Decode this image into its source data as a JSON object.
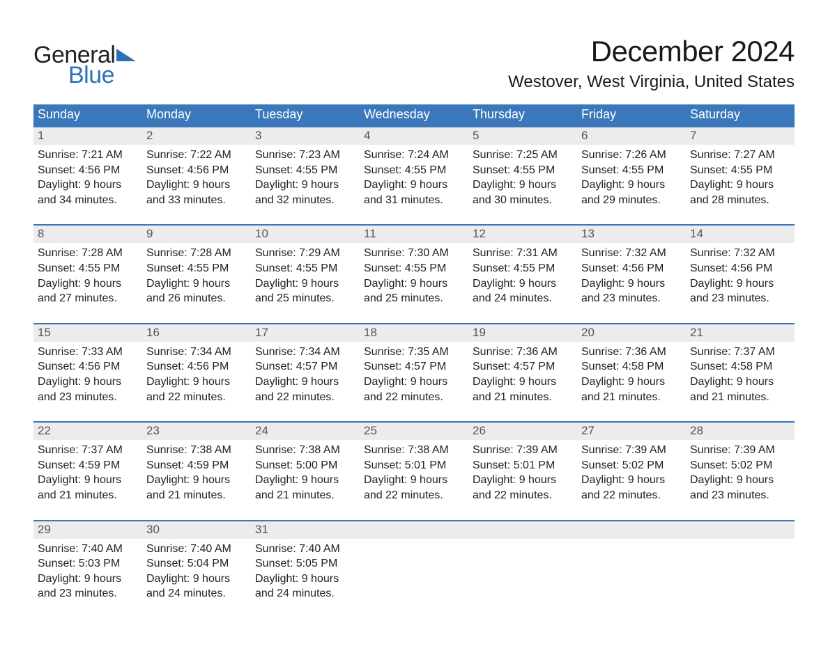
{
  "brand": {
    "part1": "General",
    "part2": "Blue"
  },
  "title": "December 2024",
  "location": "Westover, West Virginia, United States",
  "colors": {
    "header_bg": "#3b78bb",
    "daynum_bg": "#ececec",
    "brand_blue": "#2f71b8",
    "brand_dark": "#222222",
    "text": "#222222"
  },
  "days_of_week": [
    "Sunday",
    "Monday",
    "Tuesday",
    "Wednesday",
    "Thursday",
    "Friday",
    "Saturday"
  ],
  "labels": {
    "sunrise": "Sunrise:",
    "sunset": "Sunset:",
    "daylight": "Daylight:"
  },
  "weeks": [
    [
      {
        "n": "1",
        "sr": "7:21 AM",
        "ss": "4:56 PM",
        "dl1": "9 hours",
        "dl2": "and 34 minutes."
      },
      {
        "n": "2",
        "sr": "7:22 AM",
        "ss": "4:56 PM",
        "dl1": "9 hours",
        "dl2": "and 33 minutes."
      },
      {
        "n": "3",
        "sr": "7:23 AM",
        "ss": "4:55 PM",
        "dl1": "9 hours",
        "dl2": "and 32 minutes."
      },
      {
        "n": "4",
        "sr": "7:24 AM",
        "ss": "4:55 PM",
        "dl1": "9 hours",
        "dl2": "and 31 minutes."
      },
      {
        "n": "5",
        "sr": "7:25 AM",
        "ss": "4:55 PM",
        "dl1": "9 hours",
        "dl2": "and 30 minutes."
      },
      {
        "n": "6",
        "sr": "7:26 AM",
        "ss": "4:55 PM",
        "dl1": "9 hours",
        "dl2": "and 29 minutes."
      },
      {
        "n": "7",
        "sr": "7:27 AM",
        "ss": "4:55 PM",
        "dl1": "9 hours",
        "dl2": "and 28 minutes."
      }
    ],
    [
      {
        "n": "8",
        "sr": "7:28 AM",
        "ss": "4:55 PM",
        "dl1": "9 hours",
        "dl2": "and 27 minutes."
      },
      {
        "n": "9",
        "sr": "7:28 AM",
        "ss": "4:55 PM",
        "dl1": "9 hours",
        "dl2": "and 26 minutes."
      },
      {
        "n": "10",
        "sr": "7:29 AM",
        "ss": "4:55 PM",
        "dl1": "9 hours",
        "dl2": "and 25 minutes."
      },
      {
        "n": "11",
        "sr": "7:30 AM",
        "ss": "4:55 PM",
        "dl1": "9 hours",
        "dl2": "and 25 minutes."
      },
      {
        "n": "12",
        "sr": "7:31 AM",
        "ss": "4:55 PM",
        "dl1": "9 hours",
        "dl2": "and 24 minutes."
      },
      {
        "n": "13",
        "sr": "7:32 AM",
        "ss": "4:56 PM",
        "dl1": "9 hours",
        "dl2": "and 23 minutes."
      },
      {
        "n": "14",
        "sr": "7:32 AM",
        "ss": "4:56 PM",
        "dl1": "9 hours",
        "dl2": "and 23 minutes."
      }
    ],
    [
      {
        "n": "15",
        "sr": "7:33 AM",
        "ss": "4:56 PM",
        "dl1": "9 hours",
        "dl2": "and 23 minutes."
      },
      {
        "n": "16",
        "sr": "7:34 AM",
        "ss": "4:56 PM",
        "dl1": "9 hours",
        "dl2": "and 22 minutes."
      },
      {
        "n": "17",
        "sr": "7:34 AM",
        "ss": "4:57 PM",
        "dl1": "9 hours",
        "dl2": "and 22 minutes."
      },
      {
        "n": "18",
        "sr": "7:35 AM",
        "ss": "4:57 PM",
        "dl1": "9 hours",
        "dl2": "and 22 minutes."
      },
      {
        "n": "19",
        "sr": "7:36 AM",
        "ss": "4:57 PM",
        "dl1": "9 hours",
        "dl2": "and 21 minutes."
      },
      {
        "n": "20",
        "sr": "7:36 AM",
        "ss": "4:58 PM",
        "dl1": "9 hours",
        "dl2": "and 21 minutes."
      },
      {
        "n": "21",
        "sr": "7:37 AM",
        "ss": "4:58 PM",
        "dl1": "9 hours",
        "dl2": "and 21 minutes."
      }
    ],
    [
      {
        "n": "22",
        "sr": "7:37 AM",
        "ss": "4:59 PM",
        "dl1": "9 hours",
        "dl2": "and 21 minutes."
      },
      {
        "n": "23",
        "sr": "7:38 AM",
        "ss": "4:59 PM",
        "dl1": "9 hours",
        "dl2": "and 21 minutes."
      },
      {
        "n": "24",
        "sr": "7:38 AM",
        "ss": "5:00 PM",
        "dl1": "9 hours",
        "dl2": "and 21 minutes."
      },
      {
        "n": "25",
        "sr": "7:38 AM",
        "ss": "5:01 PM",
        "dl1": "9 hours",
        "dl2": "and 22 minutes."
      },
      {
        "n": "26",
        "sr": "7:39 AM",
        "ss": "5:01 PM",
        "dl1": "9 hours",
        "dl2": "and 22 minutes."
      },
      {
        "n": "27",
        "sr": "7:39 AM",
        "ss": "5:02 PM",
        "dl1": "9 hours",
        "dl2": "and 22 minutes."
      },
      {
        "n": "28",
        "sr": "7:39 AM",
        "ss": "5:02 PM",
        "dl1": "9 hours",
        "dl2": "and 23 minutes."
      }
    ],
    [
      {
        "n": "29",
        "sr": "7:40 AM",
        "ss": "5:03 PM",
        "dl1": "9 hours",
        "dl2": "and 23 minutes."
      },
      {
        "n": "30",
        "sr": "7:40 AM",
        "ss": "5:04 PM",
        "dl1": "9 hours",
        "dl2": "and 24 minutes."
      },
      {
        "n": "31",
        "sr": "7:40 AM",
        "ss": "5:05 PM",
        "dl1": "9 hours",
        "dl2": "and 24 minutes."
      },
      null,
      null,
      null,
      null
    ]
  ]
}
